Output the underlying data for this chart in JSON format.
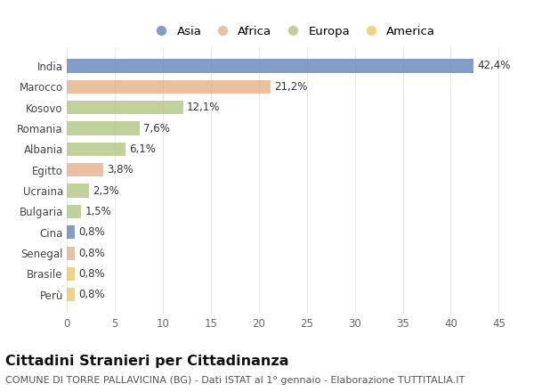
{
  "categories": [
    "India",
    "Marocco",
    "Kosovo",
    "Romania",
    "Albania",
    "Egitto",
    "Ucraina",
    "Bulgaria",
    "Cina",
    "Senegal",
    "Brasile",
    "Perù"
  ],
  "values": [
    42.4,
    21.2,
    12.1,
    7.6,
    6.1,
    3.8,
    2.3,
    1.5,
    0.8,
    0.8,
    0.8,
    0.8
  ],
  "labels": [
    "42,4%",
    "21,2%",
    "12,1%",
    "7,6%",
    "6,1%",
    "3,8%",
    "2,3%",
    "1,5%",
    "0,8%",
    "0,8%",
    "0,8%",
    "0,8%"
  ],
  "continents": [
    "Asia",
    "Africa",
    "Europa",
    "Europa",
    "Europa",
    "Africa",
    "Europa",
    "Europa",
    "Asia",
    "Africa",
    "America",
    "America"
  ],
  "colors": {
    "Asia": "#6b8cbf",
    "Africa": "#e8b48e",
    "Europa": "#b5c98a",
    "America": "#f0c96a"
  },
  "legend_order": [
    "Asia",
    "Africa",
    "Europa",
    "America"
  ],
  "xlim": [
    0,
    47
  ],
  "xticks": [
    0,
    5,
    10,
    15,
    20,
    25,
    30,
    35,
    40,
    45
  ],
  "title": "Cittadini Stranieri per Cittadinanza",
  "subtitle": "COMUNE DI TORRE PALLAVICINA (BG) - Dati ISTAT al 1° gennaio - Elaborazione TUTTITALIA.IT",
  "bg_color": "#ffffff",
  "plot_bg_color": "#ffffff",
  "grid_color": "#e8e8e8",
  "bar_height": 0.65,
  "label_fontsize": 8.5,
  "title_fontsize": 11.5,
  "subtitle_fontsize": 8,
  "axis_label_fontsize": 8.5,
  "legend_fontsize": 9.5
}
